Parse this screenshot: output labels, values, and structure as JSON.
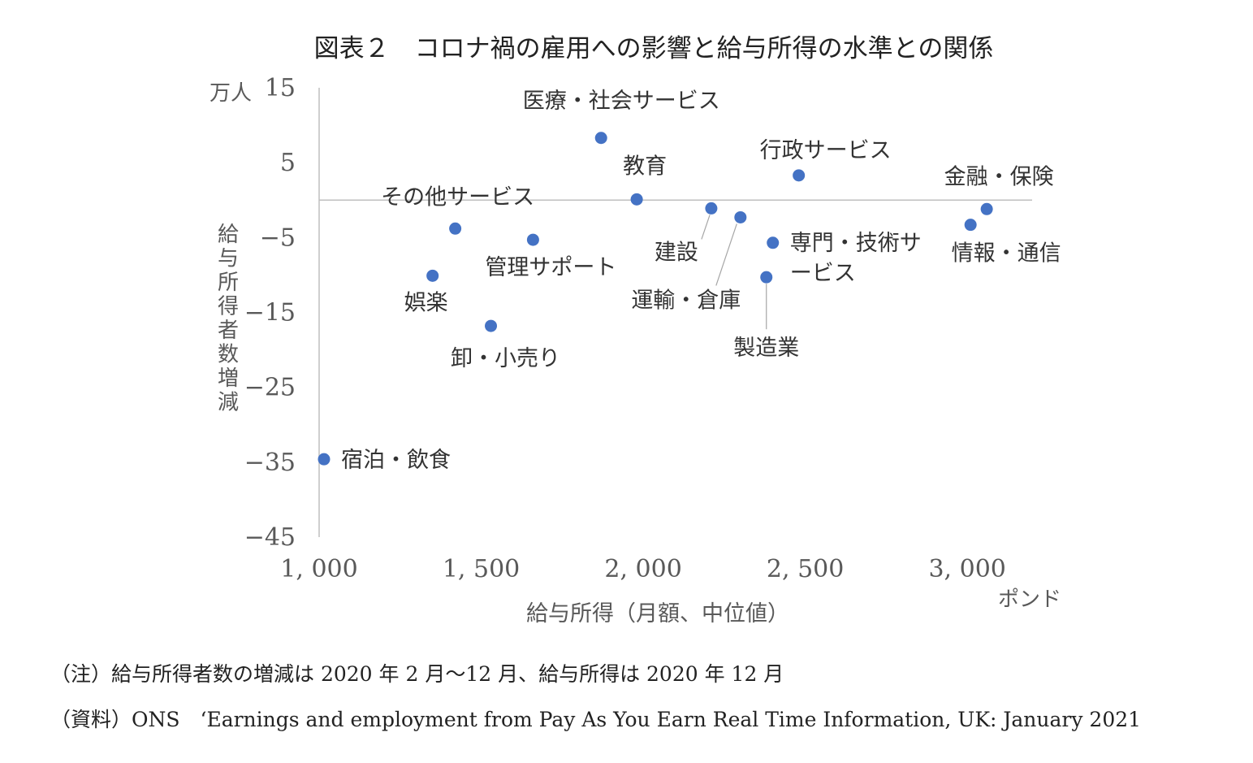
{
  "chart_data": {
    "type": "scatter",
    "title": "図表２　コロナ禍の雇用への影響と給与所得の水準との関係",
    "xlabel": "給与所得（月額、中位値）",
    "x_unit": "ポンド",
    "ylabel": "給与所得者数増減",
    "y_unit": "万人",
    "xlim": [
      1000,
      3200
    ],
    "ylim": [
      -45,
      15
    ],
    "x_ticks": [
      1000,
      1500,
      2000,
      2500,
      3000
    ],
    "x_tick_labels": [
      "1, 000",
      "1, 500",
      "2, 000",
      "2, 500",
      "3, 000"
    ],
    "y_ticks": [
      15,
      5,
      -5,
      -15,
      -25,
      -35,
      -45
    ],
    "y_tick_labels": [
      "15",
      "5",
      "−5",
      "−15",
      "−25",
      "−35",
      "−45"
    ],
    "grid": false,
    "legend": "none",
    "marker_color": "#4472c4",
    "points": [
      {
        "label": "医療・社会サービス",
        "x": 1870,
        "y": 8.3
      },
      {
        "label": "教育",
        "x": 1980,
        "y": 0.1
      },
      {
        "label": "行政サービス",
        "x": 2480,
        "y": 3.3
      },
      {
        "label": "金融・保険",
        "x": 3060,
        "y": -1.2
      },
      {
        "label": "情報・通信",
        "x": 3010,
        "y": -3.3
      },
      {
        "label": "その他サービス",
        "x": 1420,
        "y": -3.8
      },
      {
        "label": "管理サポート",
        "x": 1660,
        "y": -5.3
      },
      {
        "label": "建設",
        "x": 2210,
        "y": -1.1
      },
      {
        "label": "運輸・倉庫",
        "x": 2300,
        "y": -2.3
      },
      {
        "label": "専門・技術サービス",
        "x": 2400,
        "y": -5.7
      },
      {
        "label": "製造業",
        "x": 2380,
        "y": -10.3
      },
      {
        "label": "娯楽",
        "x": 1350,
        "y": -10.1
      },
      {
        "label": "卸・小売り",
        "x": 1530,
        "y": -16.8
      },
      {
        "label": "宿泊・飲食",
        "x": 1015,
        "y": -34.6
      }
    ]
  },
  "notes": {
    "note": "（注）給与所得者数の増減は 2020 年 2 月～12 月、給与所得は 2020 年 12 月",
    "source": "（資料）ONS　‘Earnings and employment from Pay As You Earn Real Time Information, UK: January 2021"
  }
}
